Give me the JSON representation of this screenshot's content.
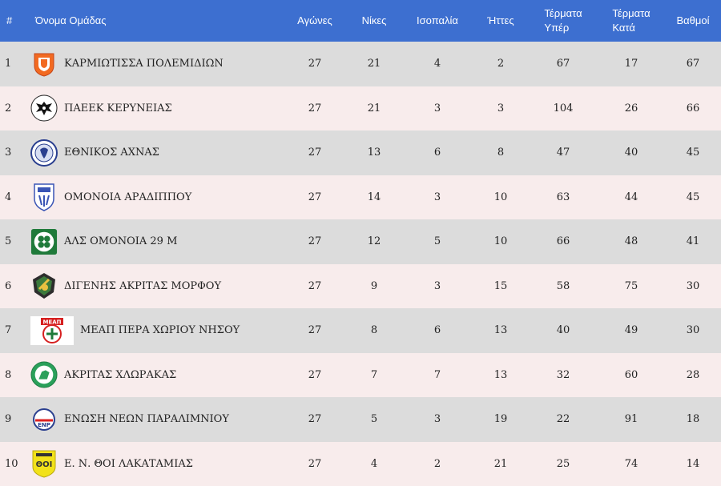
{
  "header": {
    "rank": "#",
    "team": "Όνομα Ομάδας",
    "played": "Αγώνες",
    "wins": "Νίκες",
    "draws": "Ισοπαλία",
    "losses": "Ήττες",
    "goals_for_1": "Τέρματα",
    "goals_for_2": "Υπέρ",
    "goals_against_1": "Τέρματα",
    "goals_against_2": "Κατά",
    "points": "Βαθμοί"
  },
  "rows": [
    {
      "rank": "1",
      "team": "ΚΑΡΜΙΩΤΙΣΣΑ ΠΟΛΕΜΙΔΙΩΝ",
      "played": "27",
      "wins": "21",
      "draws": "4",
      "losses": "2",
      "gf": "67",
      "ga": "17",
      "pts": "67",
      "logo": "karmiotissa-crest-icon"
    },
    {
      "rank": "2",
      "team": "ΠΑΕΕΚ ΚΕΡΥΝΕΙΑΣ",
      "played": "27",
      "wins": "21",
      "draws": "3",
      "losses": "3",
      "gf": "104",
      "ga": "26",
      "pts": "66",
      "logo": "paeek-eagle-crest-icon"
    },
    {
      "rank": "3",
      "team": "ΕΘΝΙΚΟΣ ΑΧΝΑΣ",
      "played": "27",
      "wins": "13",
      "draws": "6",
      "losses": "8",
      "gf": "47",
      "ga": "40",
      "pts": "45",
      "logo": "ethnikos-achnas-crest-icon"
    },
    {
      "rank": "4",
      "team": "ΟΜΟΝΟΙΑ ΑΡΑΔΙΠΠΟΥ",
      "played": "27",
      "wins": "14",
      "draws": "3",
      "losses": "10",
      "gf": "63",
      "ga": "44",
      "pts": "45",
      "logo": "omonoia-aradippou-shield-icon"
    },
    {
      "rank": "5",
      "team": "ΑΛΣ ΟΜΟΝΟΙΑ 29 Μ",
      "played": "27",
      "wins": "12",
      "draws": "5",
      "losses": "10",
      "gf": "66",
      "ga": "48",
      "pts": "41",
      "logo": "omonoia-29m-clover-icon"
    },
    {
      "rank": "6",
      "team": "ΔΙΓΕΝΗΣ ΑΚΡΙΤΑΣ ΜΟΡΦΟΥ",
      "played": "27",
      "wins": "9",
      "draws": "3",
      "losses": "15",
      "gf": "58",
      "ga": "75",
      "pts": "30",
      "logo": "digenis-morfou-crest-icon"
    },
    {
      "rank": "7",
      "team": "ΜΕΑΠ ΠΕΡΑ ΧΩΡΙΟΥ ΝΗΣΟΥ",
      "played": "27",
      "wins": "8",
      "draws": "6",
      "losses": "13",
      "gf": "40",
      "ga": "49",
      "pts": "30",
      "logo": "meap-crest-icon"
    },
    {
      "rank": "8",
      "team": "ΑΚΡΙΤΑΣ ΧΛΩΡΑΚΑΣ",
      "played": "27",
      "wins": "7",
      "draws": "7",
      "losses": "13",
      "gf": "32",
      "ga": "60",
      "pts": "28",
      "logo": "akritas-chlorakas-crest-icon"
    },
    {
      "rank": "9",
      "team": "ΕΝΩΣΗ ΝΕΩΝ ΠΑΡΑΛΙΜΝΙΟΥ",
      "played": "27",
      "wins": "5",
      "draws": "3",
      "losses": "19",
      "gf": "22",
      "ga": "91",
      "pts": "18",
      "logo": "enp-crest-icon"
    },
    {
      "rank": "10",
      "team": "Ε. Ν. ΘΟΙ ΛΑΚΑΤΑΜΙΑΣ",
      "played": "27",
      "wins": "4",
      "draws": "2",
      "losses": "21",
      "gf": "25",
      "ga": "74",
      "pts": "14",
      "logo": "thoi-lakatamias-crest-icon"
    }
  ],
  "colors": {
    "header_bg": "#3d6fd0",
    "row_odd": "#dcdcdc",
    "row_even": "#f8ecec"
  }
}
